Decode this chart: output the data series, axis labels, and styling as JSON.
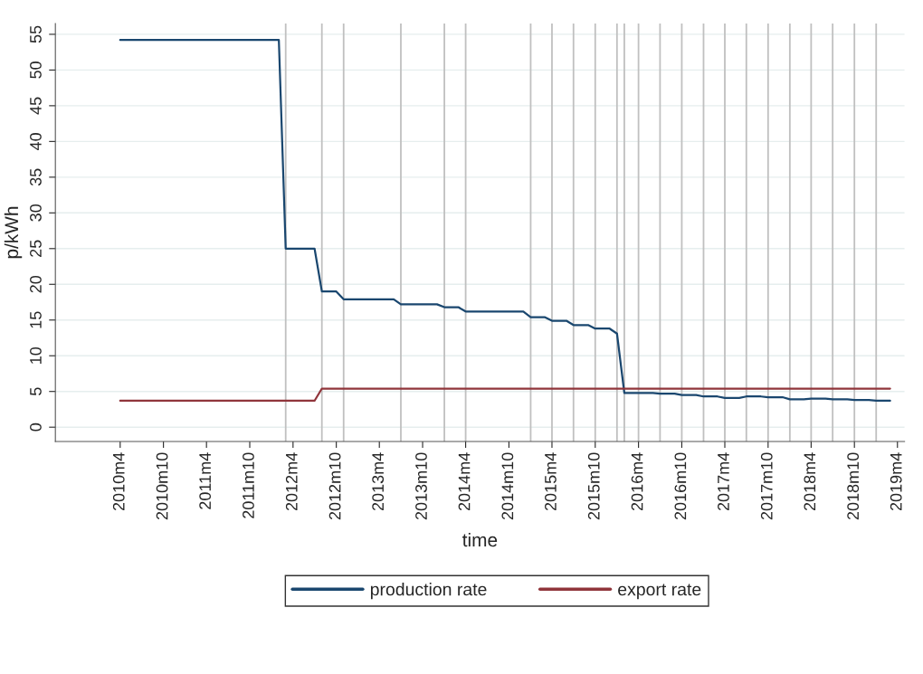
{
  "chart_data": {
    "type": "line",
    "xlabel": "time",
    "ylabel": "p/kWh",
    "series": [
      {
        "name": "production rate",
        "color": "#1a476f",
        "x": [
          "2010-04",
          "2012-02",
          "2012-03",
          "2012-07",
          "2012-08",
          "2012-10",
          "2012-11",
          "2013-06",
          "2013-07",
          "2013-12",
          "2014-01",
          "2014-03",
          "2014-04",
          "2014-12",
          "2015-01",
          "2015-03",
          "2015-04",
          "2015-06",
          "2015-07",
          "2015-09",
          "2015-10",
          "2015-12",
          "2016-01",
          "2016-02",
          "2016-06",
          "2016-07",
          "2016-09",
          "2016-10",
          "2016-12",
          "2017-01",
          "2017-03",
          "2017-04",
          "2017-06",
          "2017-07",
          "2017-09",
          "2017-10",
          "2017-12",
          "2018-01",
          "2018-03",
          "2018-04",
          "2018-06",
          "2018-07",
          "2018-09",
          "2018-10",
          "2018-12",
          "2019-01",
          "2019-03"
        ],
        "values": [
          54.2,
          54.2,
          25,
          25,
          19,
          19,
          17.9,
          17.9,
          17.2,
          17.2,
          16.8,
          16.8,
          16.2,
          16.2,
          15.4,
          15.4,
          14.9,
          14.9,
          14.3,
          14.3,
          13.8,
          13.8,
          13.1,
          4.8,
          4.8,
          4.7,
          4.7,
          4.5,
          4.5,
          4.3,
          4.3,
          4.1,
          4.1,
          4.3,
          4.3,
          4.2,
          4.2,
          3.9,
          3.9,
          4,
          4,
          3.9,
          3.9,
          3.8,
          3.8,
          3.7,
          3.7
        ]
      },
      {
        "name": "export rate",
        "color": "#90353b",
        "x": [
          "2010-04",
          "2012-07",
          "2012-08",
          "2019-03"
        ],
        "values": [
          3.7,
          3.7,
          5.4,
          5.4
        ]
      }
    ],
    "xlim": [
      "2009-07",
      "2019-05"
    ],
    "ylim": [
      -2,
      56.5
    ],
    "xticks": [
      {
        "value": "2010-04",
        "label": "2010m4"
      },
      {
        "value": "2010-10",
        "label": "2010m10"
      },
      {
        "value": "2011-04",
        "label": "2011m4"
      },
      {
        "value": "2011-10",
        "label": "2011m10"
      },
      {
        "value": "2012-04",
        "label": "2012m4"
      },
      {
        "value": "2012-10",
        "label": "2012m10"
      },
      {
        "value": "2013-04",
        "label": "2013m4"
      },
      {
        "value": "2013-10",
        "label": "2013m10"
      },
      {
        "value": "2014-04",
        "label": "2014m4"
      },
      {
        "value": "2014-10",
        "label": "2014m10"
      },
      {
        "value": "2015-04",
        "label": "2015m4"
      },
      {
        "value": "2015-10",
        "label": "2015m10"
      },
      {
        "value": "2016-04",
        "label": "2016m4"
      },
      {
        "value": "2016-10",
        "label": "2016m10"
      },
      {
        "value": "2017-04",
        "label": "2017m4"
      },
      {
        "value": "2017-10",
        "label": "2017m10"
      },
      {
        "value": "2018-04",
        "label": "2018m4"
      },
      {
        "value": "2018-10",
        "label": "2018m10"
      },
      {
        "value": "2019-04",
        "label": "2019m4"
      }
    ],
    "yticks": [
      0,
      5,
      10,
      15,
      20,
      25,
      30,
      35,
      40,
      45,
      50,
      55
    ],
    "ref_lines": [
      {
        "axis": "x",
        "value": "2012-03",
        "color": "#c0c0c0"
      },
      {
        "axis": "x",
        "value": "2012-08",
        "color": "#c0c0c0"
      },
      {
        "axis": "x",
        "value": "2012-11",
        "color": "#c0c0c0"
      },
      {
        "axis": "x",
        "value": "2013-07",
        "color": "#c0c0c0"
      },
      {
        "axis": "x",
        "value": "2014-01",
        "color": "#c0c0c0"
      },
      {
        "axis": "x",
        "value": "2014-04",
        "color": "#c0c0c0"
      },
      {
        "axis": "x",
        "value": "2015-01",
        "color": "#c0c0c0"
      },
      {
        "axis": "x",
        "value": "2015-04",
        "color": "#c0c0c0"
      },
      {
        "axis": "x",
        "value": "2015-07",
        "color": "#c0c0c0"
      },
      {
        "axis": "x",
        "value": "2015-10",
        "color": "#c0c0c0"
      },
      {
        "axis": "x",
        "value": "2016-01",
        "color": "#c0c0c0"
      },
      {
        "axis": "x",
        "value": "2016-02",
        "color": "#c0c0c0"
      },
      {
        "axis": "x",
        "value": "2016-04",
        "color": "#c0c0c0"
      },
      {
        "axis": "x",
        "value": "2016-07",
        "color": "#c0c0c0"
      },
      {
        "axis": "x",
        "value": "2016-10",
        "color": "#c0c0c0"
      },
      {
        "axis": "x",
        "value": "2017-01",
        "color": "#c0c0c0"
      },
      {
        "axis": "x",
        "value": "2017-04",
        "color": "#c0c0c0"
      },
      {
        "axis": "x",
        "value": "2017-07",
        "color": "#c0c0c0"
      },
      {
        "axis": "x",
        "value": "2017-10",
        "color": "#c0c0c0"
      },
      {
        "axis": "x",
        "value": "2018-01",
        "color": "#c0c0c0"
      },
      {
        "axis": "x",
        "value": "2018-04",
        "color": "#c0c0c0"
      },
      {
        "axis": "x",
        "value": "2018-07",
        "color": "#c0c0c0"
      },
      {
        "axis": "x",
        "value": "2018-10",
        "color": "#c0c0c0"
      },
      {
        "axis": "x",
        "value": "2019-01",
        "color": "#c0c0c0"
      }
    ],
    "grid": "y",
    "legend": "bottom",
    "marker": "none",
    "line_style": "solid"
  }
}
